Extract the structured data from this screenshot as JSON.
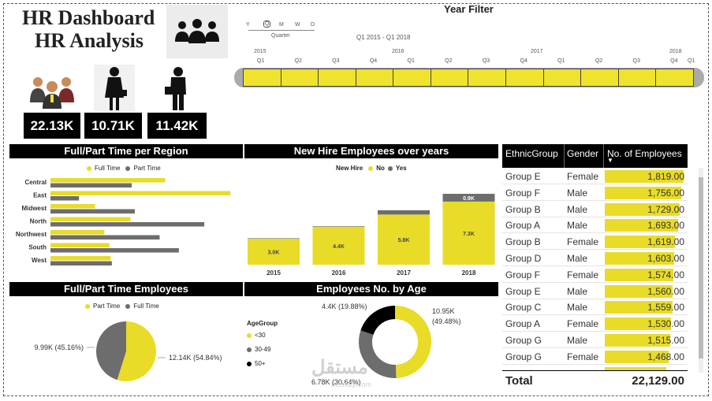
{
  "header": {
    "title_line1": "HR Dashboard",
    "title_line2": "HR Analysis"
  },
  "kpis": [
    {
      "icon": "group-people-icon",
      "value": "22.13K"
    },
    {
      "icon": "female-employee-icon",
      "value": "10.71K"
    },
    {
      "icon": "male-employee-icon",
      "value": "11.42K"
    }
  ],
  "year_filter": {
    "title": "Year Filter",
    "levels": [
      "Y",
      "Q",
      "M",
      "W",
      "D"
    ],
    "level_label": "Quarter",
    "range_label": "Q1 2015 - Q1 2018",
    "years": [
      "2015",
      "2016",
      "2017",
      "2018"
    ],
    "quarters": [
      "Q1",
      "Q2",
      "Q3",
      "Q4",
      "Q1",
      "Q2",
      "Q3",
      "Q4",
      "Q1",
      "Q2",
      "Q3",
      "Q4",
      "Q1"
    ]
  },
  "colors": {
    "accent": "#e8dc28",
    "secondary": "#6d6d6d",
    "dark": "#000000"
  },
  "chart_data": [
    {
      "type": "bar",
      "title": "Full/Part Time per Region",
      "orientation": "horizontal",
      "categories": [
        "Central",
        "East",
        "Midwest",
        "North",
        "Northwest",
        "South",
        "West"
      ],
      "series": [
        {
          "name": "Full Time",
          "color": "#e8dc28",
          "values": [
            1850,
            2900,
            720,
            1290,
            870,
            950,
            970
          ]
        },
        {
          "name": "Part Time",
          "color": "#6d6d6d",
          "values": [
            1310,
            460,
            1360,
            2480,
            1760,
            2070,
            990
          ]
        }
      ]
    },
    {
      "type": "bar",
      "title": "New Hire Employees over years",
      "stacked": true,
      "legend_title": "New Hire",
      "categories": [
        "2015",
        "2016",
        "2017",
        "2018"
      ],
      "series": [
        {
          "name": "No",
          "color": "#e8dc28",
          "values": [
            3000,
            4400,
            5800,
            7300
          ],
          "labels": [
            "3.0K",
            "4.4K",
            "5.8K",
            "7.3K"
          ]
        },
        {
          "name": "Yes",
          "color": "#6d6d6d",
          "values": [
            60,
            60,
            500,
            900
          ],
          "labels": [
            "",
            "",
            "",
            "0.9K"
          ]
        }
      ]
    },
    {
      "type": "pie",
      "title": "Full/Part Time Employees",
      "series": [
        {
          "name": "Part Time",
          "color": "#e8dc28",
          "value": 12140,
          "label": "12.14K (54.84%)"
        },
        {
          "name": "Full Time",
          "color": "#6d6d6d",
          "value": 9990,
          "label": "9.99K (45.16%)"
        }
      ]
    },
    {
      "type": "pie",
      "donut": true,
      "title": "Employees No. by Age",
      "legend_title": "AgeGroup",
      "series": [
        {
          "name": "<30",
          "color": "#e8dc28",
          "value": 10950,
          "label": "10.95K",
          "pct": "(49.48%)"
        },
        {
          "name": "30-49",
          "color": "#6d6d6d",
          "value": 6780,
          "label": "6.78K (30.64%)"
        },
        {
          "name": "50+",
          "color": "#000000",
          "value": 4400,
          "label": "4.4K (19.88%)"
        }
      ]
    },
    {
      "type": "table",
      "columns": [
        "EthnicGroup",
        "Gender",
        "No. of Employees"
      ],
      "rows": [
        [
          "Group E",
          "Female",
          1819
        ],
        [
          "Group F",
          "Male",
          1756
        ],
        [
          "Group B",
          "Male",
          1729
        ],
        [
          "Group A",
          "Male",
          1693
        ],
        [
          "Group B",
          "Female",
          1619
        ],
        [
          "Group D",
          "Male",
          1603
        ],
        [
          "Group F",
          "Female",
          1574
        ],
        [
          "Group E",
          "Male",
          1560
        ],
        [
          "Group C",
          "Male",
          1559
        ],
        [
          "Group A",
          "Female",
          1530
        ],
        [
          "Group G",
          "Male",
          1515
        ],
        [
          "Group G",
          "Female",
          1468
        ]
      ],
      "display": [
        "1,819.00",
        "1,756.00",
        "1,729.00",
        "1,693.00",
        "1,619.00",
        "1,603.00",
        "1,574.00",
        "1,560.00",
        "1,559.00",
        "1,530.00",
        "1,515.00",
        "1,468.00"
      ],
      "total_label": "Total",
      "total_value": "22,129.00"
    }
  ],
  "watermark": {
    "text": "مستقل",
    "sub": "mostaql.com"
  }
}
